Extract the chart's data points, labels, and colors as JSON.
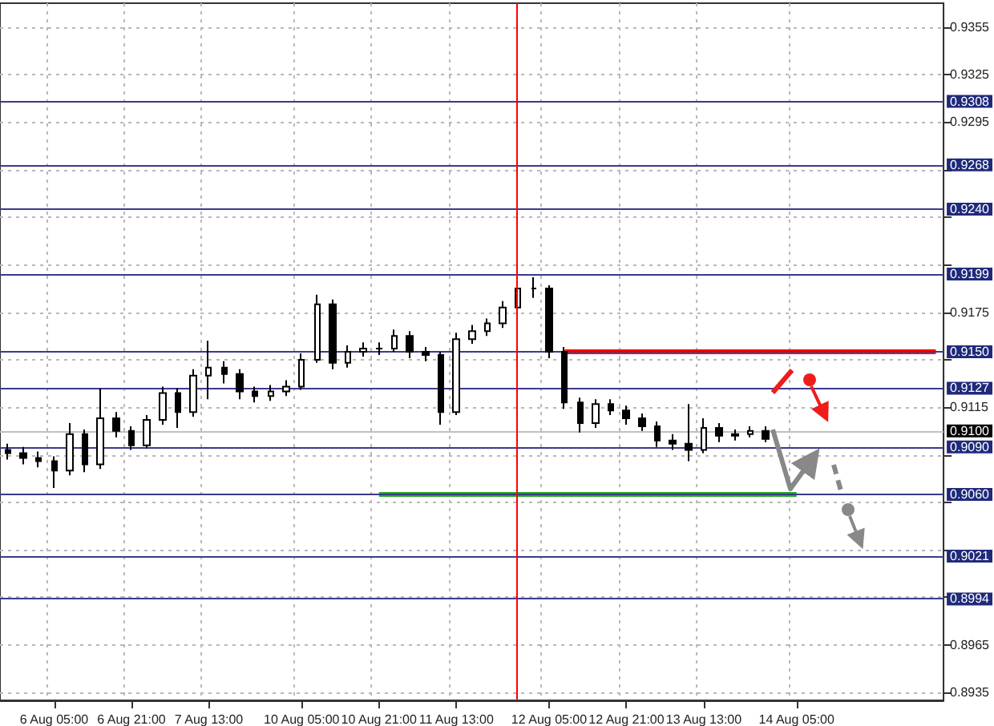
{
  "chart_data": {
    "type": "candlestick",
    "color": "#000000",
    "categories": [
      null,
      null,
      null,
      "6 Aug 05:00",
      null,
      null,
      null,
      null,
      "6 Aug 21:00",
      null,
      null,
      null,
      null,
      "7 Aug 13:00",
      null,
      null,
      null,
      null,
      null,
      "10 Aug 05:00",
      null,
      null,
      null,
      null,
      "10 Aug 21:00",
      null,
      null,
      null,
      null,
      "11 Aug 13:00",
      null,
      null,
      null,
      null,
      null,
      "12 Aug 05:00",
      null,
      null,
      null,
      null,
      "12 Aug 21:00",
      null,
      null,
      null,
      null,
      "13 Aug 13:00",
      null,
      null,
      null,
      null,
      null,
      "14 Aug 05:00",
      null,
      null,
      null,
      null,
      null,
      null,
      null,
      null,
      null
    ],
    "ohlc": [
      [
        0.9088,
        0.9092,
        0.9082,
        0.9086
      ],
      [
        0.9086,
        0.909,
        0.9079,
        0.9083
      ],
      [
        0.9083,
        0.9087,
        0.9077,
        0.9081
      ],
      [
        0.9081,
        0.9084,
        0.9064,
        0.9075
      ],
      [
        0.9075,
        0.9105,
        0.9072,
        0.9098
      ],
      [
        0.9098,
        0.9101,
        0.9074,
        0.9079
      ],
      [
        0.9079,
        0.9127,
        0.9076,
        0.9108
      ],
      [
        0.9108,
        0.9112,
        0.9096,
        0.91
      ],
      [
        0.91,
        0.9103,
        0.9088,
        0.9091
      ],
      [
        0.9091,
        0.911,
        0.9089,
        0.9107
      ],
      [
        0.9107,
        0.9128,
        0.9104,
        0.9124
      ],
      [
        0.9124,
        0.9127,
        0.9102,
        0.9112
      ],
      [
        0.9112,
        0.9139,
        0.9109,
        0.9135
      ],
      [
        0.9135,
        0.9157,
        0.912,
        0.914
      ],
      [
        0.914,
        0.9144,
        0.913,
        0.9136
      ],
      [
        0.9136,
        0.9139,
        0.912,
        0.9125
      ],
      [
        0.9125,
        0.9128,
        0.9118,
        0.9122
      ],
      [
        0.9122,
        0.9129,
        0.9119,
        0.9125
      ],
      [
        0.9125,
        0.9132,
        0.9122,
        0.9128
      ],
      [
        0.9128,
        0.9149,
        0.9126,
        0.9145
      ],
      [
        0.9145,
        0.9186,
        0.9143,
        0.918
      ],
      [
        0.918,
        0.9183,
        0.9139,
        0.9143
      ],
      [
        0.9143,
        0.9154,
        0.914,
        0.915
      ],
      [
        0.915,
        0.9156,
        0.9147,
        0.9152
      ],
      [
        0.9152,
        0.9156,
        0.9148,
        0.9152
      ],
      [
        0.9152,
        0.9164,
        0.915,
        0.916
      ],
      [
        0.916,
        0.9163,
        0.9146,
        0.915
      ],
      [
        0.915,
        0.9153,
        0.9144,
        0.9148
      ],
      [
        0.9148,
        0.915,
        0.9104,
        0.9112
      ],
      [
        0.9112,
        0.9162,
        0.911,
        0.9158
      ],
      [
        0.9158,
        0.9167,
        0.9155,
        0.9163
      ],
      [
        0.9163,
        0.9171,
        0.916,
        0.9168
      ],
      [
        0.9168,
        0.9182,
        0.9165,
        0.9178
      ],
      [
        0.9178,
        0.9193,
        0.9175,
        0.919
      ],
      [
        0.919,
        0.9197,
        0.9184,
        0.919
      ],
      [
        0.919,
        0.9192,
        0.9146,
        0.915
      ],
      [
        0.915,
        0.9153,
        0.9114,
        0.9118
      ],
      [
        0.9118,
        0.9121,
        0.9099,
        0.9105
      ],
      [
        0.9105,
        0.912,
        0.9102,
        0.9117
      ],
      [
        0.9117,
        0.912,
        0.911,
        0.9113
      ],
      [
        0.9113,
        0.9116,
        0.9104,
        0.9108
      ],
      [
        0.9108,
        0.9111,
        0.91,
        0.9103
      ],
      [
        0.9103,
        0.9106,
        0.909,
        0.9094
      ],
      [
        0.9094,
        0.9098,
        0.9088,
        0.9092
      ],
      [
        0.9092,
        0.9117,
        0.9081,
        0.9088
      ],
      [
        0.9088,
        0.9108,
        0.9086,
        0.9102
      ],
      [
        0.9102,
        0.9105,
        0.9093,
        0.9097
      ],
      [
        0.9097,
        0.9101,
        0.9094,
        0.9098
      ],
      [
        0.9098,
        0.9103,
        0.9096,
        0.91
      ],
      [
        0.91,
        0.9103,
        0.9093,
        0.9095
      ],
      null,
      null,
      null,
      null,
      null,
      null,
      null,
      null,
      null,
      null,
      null
    ],
    "series": [
      {
        "type": "line",
        "color": "#ff0000",
        "values": [
          null,
          null,
          null,
          null,
          null,
          null,
          null,
          null,
          null,
          null,
          null,
          null,
          null,
          null,
          null,
          null,
          null,
          null,
          null,
          null,
          null,
          null,
          null,
          null,
          null,
          null,
          null,
          null,
          null,
          null,
          null,
          null,
          null,
          null,
          null,
          null,
          0.915,
          0.915,
          0.915,
          0.915,
          0.915,
          0.915,
          0.915,
          0.915,
          0.915,
          0.915,
          0.915,
          0.915,
          0.915,
          0.915,
          0.915,
          0.915,
          0.915,
          0.915,
          0.915,
          0.915,
          0.915,
          0.915,
          0.915,
          0.915,
          0.915
        ]
      },
      {
        "type": "line",
        "color": "#22aa22",
        "values": [
          null,
          null,
          null,
          null,
          null,
          null,
          null,
          null,
          null,
          null,
          null,
          null,
          null,
          null,
          null,
          null,
          null,
          null,
          null,
          null,
          null,
          null,
          null,
          null,
          0.906,
          0.906,
          0.906,
          0.906,
          0.906,
          0.906,
          0.906,
          0.906,
          0.906,
          0.906,
          0.906,
          0.906,
          0.906,
          0.906,
          0.906,
          0.906,
          0.906,
          0.906,
          0.906,
          0.906,
          0.906,
          0.906,
          0.906,
          0.906,
          0.906,
          0.906,
          0.906,
          0.906,
          null,
          null,
          null,
          null,
          null,
          null,
          null,
          null,
          null
        ]
      }
    ],
    "ylim": [
      0.893,
      0.937
    ],
    "yticks": [
      0.8935,
      0.8965,
      {
        "value": 0.8995,
        "label": null
      },
      {
        "value": 0.9025,
        "label": null
      },
      {
        "value": 0.9055,
        "label": null
      },
      {
        "value": 0.9085,
        "label": null
      },
      0.9115,
      {
        "value": 0.9145,
        "label": null
      },
      0.9175,
      {
        "value": 0.9205,
        "label": null
      },
      {
        "value": 0.9235,
        "label": null
      },
      {
        "value": 0.9265,
        "label": null
      },
      0.9295,
      0.9325,
      0.9355
    ],
    "ref_lines": [
      {
        "axis": "y",
        "value": 0.9308,
        "label": "0.9308",
        "color": "#3a3a8c"
      },
      {
        "axis": "y",
        "value": 0.9268,
        "label": "0.9268",
        "color": "#3a3a8c"
      },
      {
        "axis": "y",
        "value": 0.924,
        "label": "0.9240",
        "color": "#3a3a8c"
      },
      {
        "axis": "y",
        "value": 0.9199,
        "label": "0.9199",
        "color": "#3a3a8c"
      },
      {
        "axis": "y",
        "value": 0.915,
        "label": "0.9150",
        "color": "#3a3a8c"
      },
      {
        "axis": "y",
        "value": 0.9127,
        "label": "0.9127",
        "color": "#3a3a8c"
      },
      {
        "axis": "y",
        "value": 0.91,
        "label": "0.9100",
        "color": "#c0c0c0"
      },
      {
        "axis": "y",
        "value": 0.909,
        "label": "0.9090",
        "color": "#3a3a8c"
      },
      {
        "axis": "y",
        "value": 0.906,
        "label": "0.9060",
        "color": "#3a3a8c"
      },
      {
        "axis": "y",
        "value": 0.9021,
        "label": "0.9021",
        "color": "#3a3a8c"
      },
      {
        "axis": "y",
        "value": 0.8994,
        "label": "0.8994",
        "color": "#3a3a8c"
      }
    ],
    "grid": true
  }
}
